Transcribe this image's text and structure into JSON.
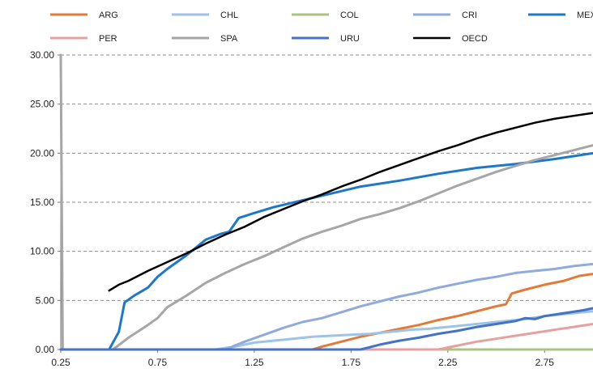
{
  "chart_data": {
    "type": "line",
    "title": "",
    "xlabel": "",
    "ylabel": "",
    "xlim": [
      0.25,
      3.0
    ],
    "ylim": [
      0,
      30
    ],
    "x_ticks": [
      "0.25",
      "0.75",
      "1.25",
      "1.75",
      "2.25",
      "2.75"
    ],
    "y_ticks": [
      "0.00",
      "5.00",
      "10.00",
      "15.00",
      "20.00",
      "25.00",
      "30.00"
    ],
    "grid": "horizontal dashed",
    "legend_position": "top",
    "series": [
      {
        "name": "ARG",
        "color": "#e07b39",
        "width": 3,
        "points": [
          [
            0.25,
            0
          ],
          [
            1.55,
            0
          ],
          [
            1.6,
            0.3
          ],
          [
            1.7,
            0.8
          ],
          [
            1.8,
            1.3
          ],
          [
            1.9,
            1.7
          ],
          [
            2.0,
            2.1
          ],
          [
            2.1,
            2.5
          ],
          [
            2.2,
            3.0
          ],
          [
            2.3,
            3.4
          ],
          [
            2.4,
            3.9
          ],
          [
            2.5,
            4.4
          ],
          [
            2.55,
            4.6
          ],
          [
            2.58,
            5.7
          ],
          [
            2.65,
            6.1
          ],
          [
            2.75,
            6.6
          ],
          [
            2.85,
            7.0
          ],
          [
            2.93,
            7.5
          ],
          [
            3.0,
            7.7
          ]
        ]
      },
      {
        "name": "CHL",
        "color": "#9dc3e6",
        "width": 3,
        "points": [
          [
            0.25,
            0
          ],
          [
            1.05,
            0
          ],
          [
            1.15,
            0.3
          ],
          [
            1.25,
            0.7
          ],
          [
            1.35,
            0.9
          ],
          [
            1.45,
            1.1
          ],
          [
            1.55,
            1.3
          ],
          [
            1.65,
            1.4
          ],
          [
            1.75,
            1.5
          ],
          [
            1.85,
            1.6
          ],
          [
            1.95,
            1.8
          ],
          [
            2.05,
            2.0
          ],
          [
            2.15,
            2.1
          ],
          [
            2.25,
            2.3
          ],
          [
            2.35,
            2.5
          ],
          [
            2.45,
            2.7
          ],
          [
            2.55,
            2.9
          ],
          [
            2.65,
            3.1
          ],
          [
            2.75,
            3.4
          ],
          [
            2.85,
            3.6
          ],
          [
            2.95,
            3.8
          ],
          [
            3.0,
            3.9
          ]
        ]
      },
      {
        "name": "COL",
        "color": "#a9c47f",
        "width": 3,
        "points": [
          [
            0.25,
            0
          ],
          [
            3.0,
            0
          ]
        ]
      },
      {
        "name": "CRI",
        "color": "#8faadc",
        "width": 3,
        "points": [
          [
            0.25,
            0
          ],
          [
            1.1,
            0
          ],
          [
            1.2,
            0.8
          ],
          [
            1.3,
            1.5
          ],
          [
            1.4,
            2.2
          ],
          [
            1.5,
            2.8
          ],
          [
            1.6,
            3.2
          ],
          [
            1.7,
            3.8
          ],
          [
            1.8,
            4.4
          ],
          [
            1.9,
            4.9
          ],
          [
            2.0,
            5.4
          ],
          [
            2.1,
            5.8
          ],
          [
            2.2,
            6.3
          ],
          [
            2.3,
            6.7
          ],
          [
            2.4,
            7.1
          ],
          [
            2.5,
            7.4
          ],
          [
            2.6,
            7.8
          ],
          [
            2.7,
            8.0
          ],
          [
            2.8,
            8.2
          ],
          [
            2.9,
            8.5
          ],
          [
            3.0,
            8.7
          ]
        ]
      },
      {
        "name": "MEX",
        "color": "#1f77c8",
        "width": 3,
        "points": [
          [
            0.25,
            0
          ],
          [
            0.5,
            0
          ],
          [
            0.55,
            1.8
          ],
          [
            0.58,
            4.8
          ],
          [
            0.63,
            5.5
          ],
          [
            0.7,
            6.3
          ],
          [
            0.75,
            7.4
          ],
          [
            0.8,
            8.2
          ],
          [
            0.9,
            9.6
          ],
          [
            1.0,
            11.2
          ],
          [
            1.08,
            11.8
          ],
          [
            1.12,
            12.0
          ],
          [
            1.17,
            13.4
          ],
          [
            1.25,
            13.9
          ],
          [
            1.35,
            14.5
          ],
          [
            1.5,
            15.2
          ],
          [
            1.65,
            15.9
          ],
          [
            1.8,
            16.6
          ],
          [
            2.0,
            17.2
          ],
          [
            2.2,
            17.9
          ],
          [
            2.4,
            18.5
          ],
          [
            2.6,
            18.9
          ],
          [
            2.8,
            19.4
          ],
          [
            3.0,
            20.0
          ]
        ]
      },
      {
        "name": "PER",
        "color": "#e6a0a0",
        "width": 3,
        "points": [
          [
            0.25,
            0
          ],
          [
            2.2,
            0
          ],
          [
            2.3,
            0.4
          ],
          [
            2.4,
            0.8
          ],
          [
            2.5,
            1.1
          ],
          [
            2.6,
            1.4
          ],
          [
            2.7,
            1.7
          ],
          [
            2.8,
            2.0
          ],
          [
            2.9,
            2.3
          ],
          [
            3.0,
            2.6
          ]
        ]
      },
      {
        "name": "SPA",
        "color": "#a6a6a6",
        "width": 3,
        "points": [
          [
            0.25,
            30
          ],
          [
            0.26,
            0
          ],
          [
            0.52,
            0
          ],
          [
            0.6,
            1.2
          ],
          [
            0.7,
            2.5
          ],
          [
            0.75,
            3.2
          ],
          [
            0.8,
            4.3
          ],
          [
            0.9,
            5.5
          ],
          [
            1.0,
            6.8
          ],
          [
            1.1,
            7.8
          ],
          [
            1.2,
            8.7
          ],
          [
            1.3,
            9.5
          ],
          [
            1.4,
            10.4
          ],
          [
            1.5,
            11.3
          ],
          [
            1.6,
            12.0
          ],
          [
            1.7,
            12.6
          ],
          [
            1.8,
            13.3
          ],
          [
            1.9,
            13.8
          ],
          [
            2.0,
            14.4
          ],
          [
            2.1,
            15.1
          ],
          [
            2.2,
            15.9
          ],
          [
            2.3,
            16.7
          ],
          [
            2.4,
            17.4
          ],
          [
            2.5,
            18.1
          ],
          [
            2.6,
            18.7
          ],
          [
            2.7,
            19.3
          ],
          [
            2.8,
            19.8
          ],
          [
            2.9,
            20.3
          ],
          [
            3.0,
            20.8
          ]
        ]
      },
      {
        "name": "URU",
        "color": "#4472c4",
        "width": 3,
        "points": [
          [
            0.25,
            0
          ],
          [
            1.8,
            0
          ],
          [
            1.9,
            0.5
          ],
          [
            2.0,
            0.9
          ],
          [
            2.1,
            1.2
          ],
          [
            2.2,
            1.6
          ],
          [
            2.3,
            1.9
          ],
          [
            2.4,
            2.3
          ],
          [
            2.5,
            2.6
          ],
          [
            2.6,
            2.9
          ],
          [
            2.65,
            3.2
          ],
          [
            2.7,
            3.1
          ],
          [
            2.75,
            3.4
          ],
          [
            2.85,
            3.7
          ],
          [
            2.95,
            4.0
          ],
          [
            3.0,
            4.2
          ]
        ]
      },
      {
        "name": "OECD",
        "color": "#000000",
        "width": 2.5,
        "points": [
          [
            0.5,
            6.0
          ],
          [
            0.55,
            6.6
          ],
          [
            0.6,
            7.0
          ],
          [
            0.7,
            8.0
          ],
          [
            0.8,
            8.9
          ],
          [
            0.9,
            9.8
          ],
          [
            1.0,
            10.8
          ],
          [
            1.1,
            11.7
          ],
          [
            1.2,
            12.5
          ],
          [
            1.3,
            13.5
          ],
          [
            1.4,
            14.3
          ],
          [
            1.5,
            15.1
          ],
          [
            1.6,
            15.8
          ],
          [
            1.7,
            16.6
          ],
          [
            1.8,
            17.3
          ],
          [
            1.9,
            18.1
          ],
          [
            2.0,
            18.8
          ],
          [
            2.1,
            19.5
          ],
          [
            2.2,
            20.2
          ],
          [
            2.3,
            20.8
          ],
          [
            2.4,
            21.5
          ],
          [
            2.5,
            22.1
          ],
          [
            2.6,
            22.6
          ],
          [
            2.7,
            23.1
          ],
          [
            2.8,
            23.5
          ],
          [
            2.9,
            23.8
          ],
          [
            3.0,
            24.1
          ]
        ]
      }
    ]
  }
}
